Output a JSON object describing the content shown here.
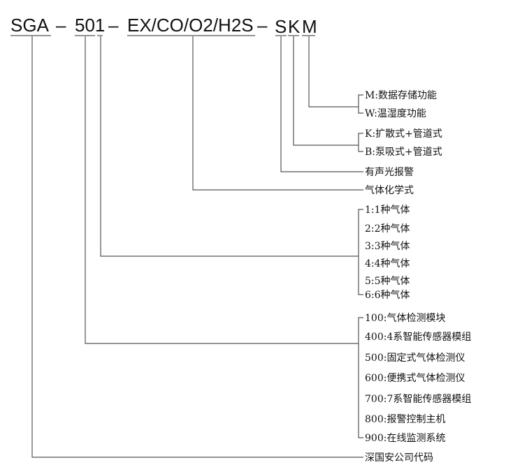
{
  "model_code": {
    "prefix": "SGA",
    "dash1": "–",
    "series": "501",
    "dash2": "–",
    "gases": "EX/CO/O2/H2S",
    "dash3": "–",
    "s": "S",
    "k": "K",
    "m": "M"
  },
  "labels": [
    "M:数据存储功能",
    "W:温湿度功能",
    "K:扩散式+管道式",
    "B:泵吸式+管道式",
    "有声光报警",
    "气体化学式",
    "1:1种气体",
    "2:2种气体",
    "3:3种气体",
    "4:4种气体",
    "5:5种气体",
    "6:6种气体",
    "100:气体检测模块",
    "400:4系智能传感器模组",
    "500:固定式气体检测仪",
    "600:便携式气体检测仪",
    "700:7系智能传感器模组",
    "800:报警控制主机",
    "900:在线监测系统",
    "深国安公司代码"
  ]
}
